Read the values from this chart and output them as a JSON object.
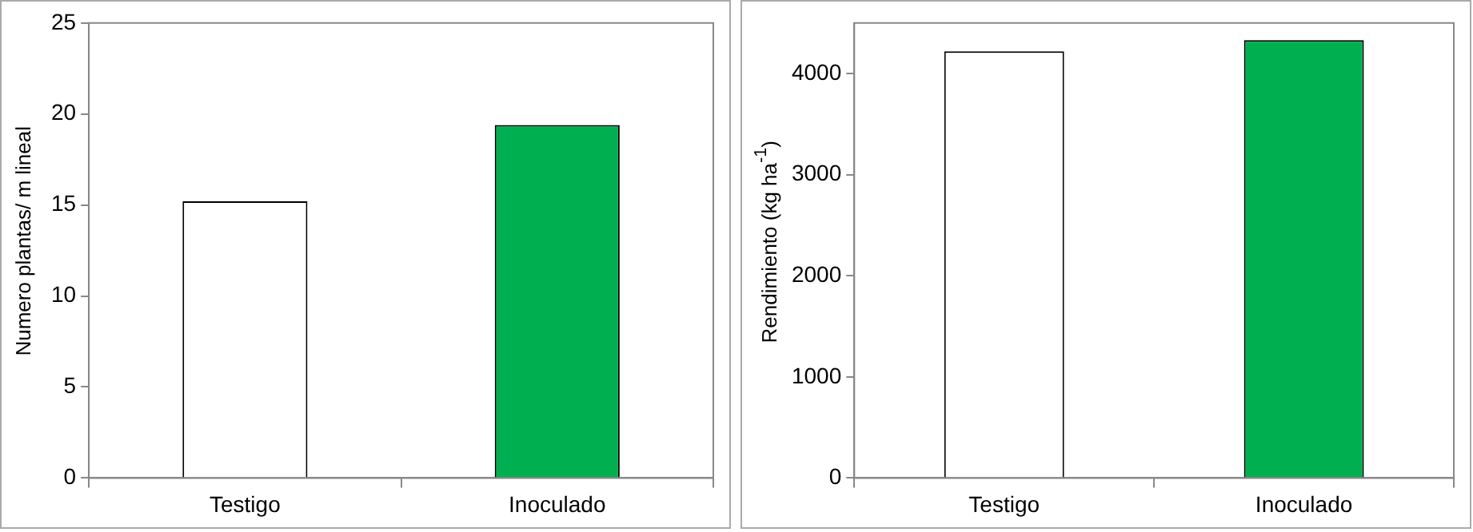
{
  "chart_data": [
    {
      "type": "bar",
      "categories": [
        "Testigo",
        "Inoculado"
      ],
      "values": [
        15.2,
        19.4
      ],
      "colors": [
        "#ffffff",
        "#00b050"
      ],
      "ylabel": "Numero plantas/ m lineal",
      "ylim": [
        0,
        25
      ],
      "yticks": [
        0,
        5,
        10,
        15,
        20,
        25
      ],
      "grid": false
    },
    {
      "type": "bar",
      "categories": [
        "Testigo",
        "Inoculado"
      ],
      "values": [
        4220,
        4330
      ],
      "colors": [
        "#ffffff",
        "#00b050"
      ],
      "ylabel": "Rendimiento (kg ha$^{-1}$)",
      "ylim": [
        0,
        4500
      ],
      "yticks": [
        0,
        1000,
        2000,
        3000,
        4000
      ],
      "grid": false
    }
  ]
}
